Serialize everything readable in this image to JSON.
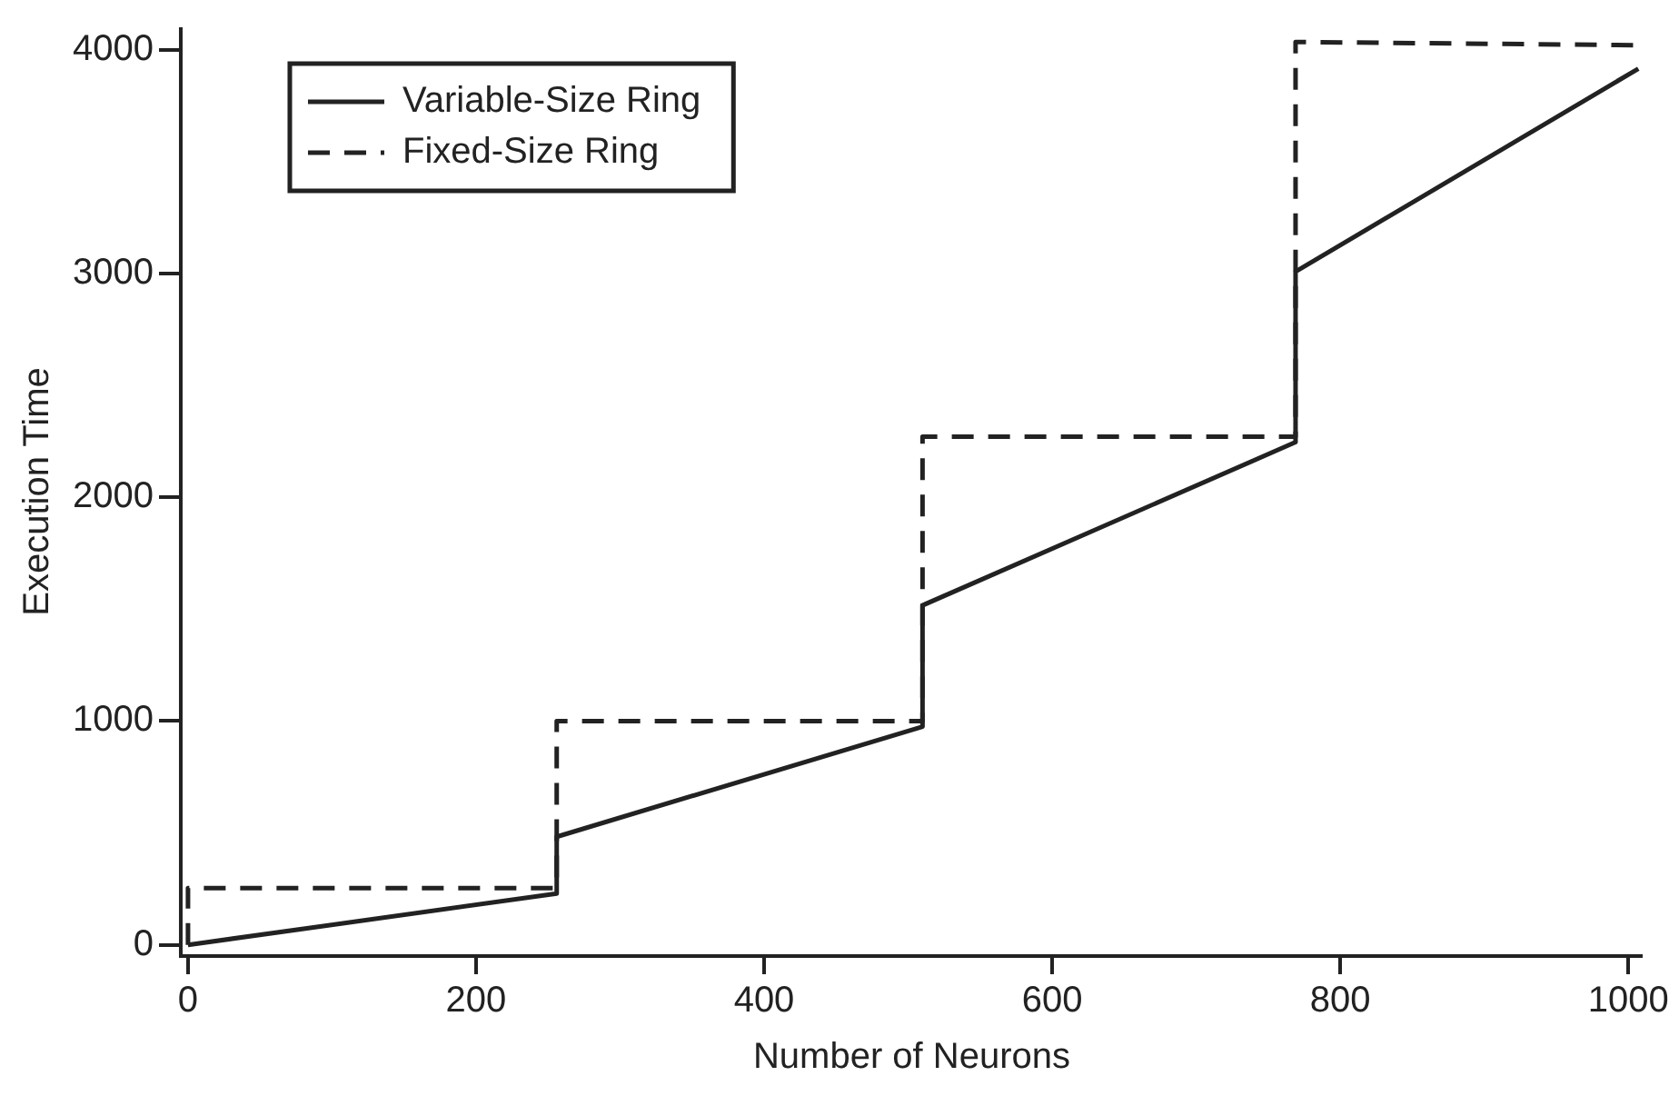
{
  "chart_data": {
    "type": "line",
    "xlabel": "Number of Neurons",
    "ylabel": "Execution Time",
    "xlim": [
      -5,
      1010
    ],
    "ylim": [
      -50,
      4100
    ],
    "xticks": [
      0,
      200,
      400,
      600,
      800,
      1000
    ],
    "yticks": [
      0,
      1000,
      2000,
      3000,
      4000
    ],
    "grid": false,
    "legend": "top left",
    "marker": "none",
    "series": [
      {
        "name": "Variable-Size Ring",
        "color": "#222222",
        "line_style": "solid",
        "x": [
          0,
          256,
          256,
          510,
          510,
          769,
          769,
          1007
        ],
        "values": [
          0,
          229,
          483,
          975,
          1517,
          2246,
          3008,
          3915
        ]
      },
      {
        "name": "Fixed-Size Ring",
        "color": "#222222",
        "line_style": "dashed",
        "x": [
          0,
          0,
          256,
          256,
          510,
          510,
          769,
          769,
          1007
        ],
        "values": [
          0,
          254,
          254,
          1000,
          1000,
          2271,
          2271,
          4034,
          4020
        ]
      }
    ]
  }
}
